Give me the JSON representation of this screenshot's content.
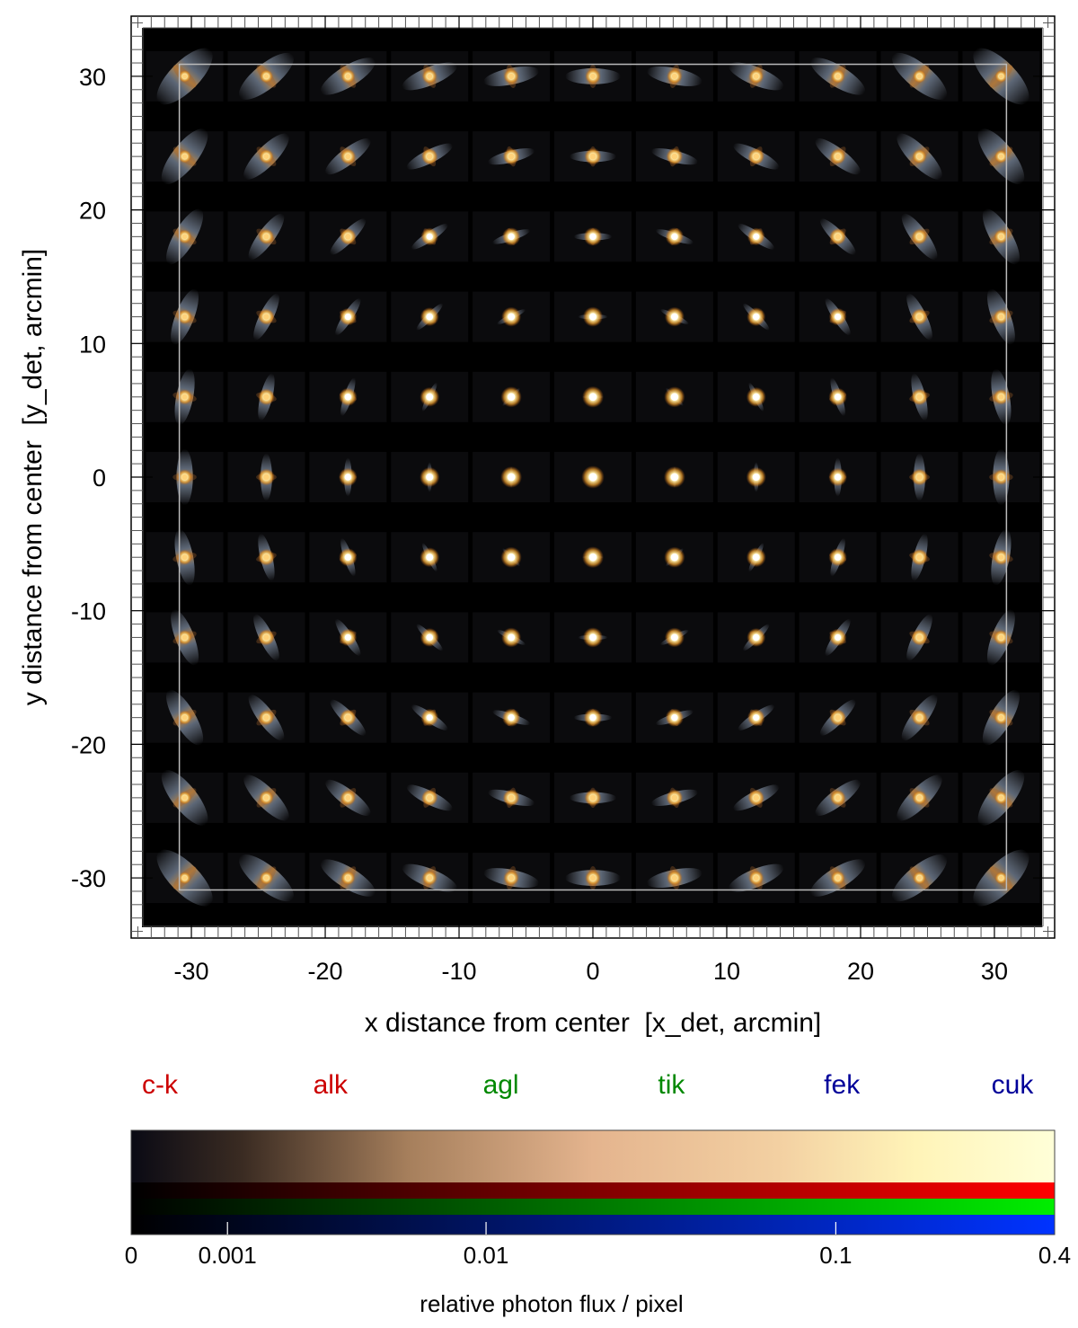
{
  "chart_data": {
    "type": "heatmap",
    "title": "",
    "xlabel": "x distance from center  [x_det, arcmin]",
    "ylabel": "y distance from center  [y_det, arcmin]",
    "xlim": [
      -34.5,
      34.5
    ],
    "ylim": [
      -34.5,
      34.5
    ],
    "xticks": [
      -30,
      -20,
      -10,
      0,
      10,
      20,
      30
    ],
    "yticks": [
      30,
      20,
      10,
      0,
      -10,
      -20,
      -30
    ],
    "psf_grid": {
      "x": [
        -30.5,
        -24.4,
        -18.3,
        -12.2,
        -6.1,
        0,
        6.1,
        12.2,
        18.3,
        24.4,
        30.5
      ],
      "y": [
        30.0,
        24.0,
        18.0,
        12.0,
        6.0,
        0,
        -6.0,
        -12.0,
        -18.0,
        -24.0,
        -30.0
      ]
    },
    "field_box": {
      "x": [
        -30.9,
        30.9
      ],
      "y": [
        -30.9,
        30.9
      ]
    },
    "energy_lines": [
      {
        "name": "c-k",
        "color": "#cc0000"
      },
      {
        "name": "alk",
        "color": "#cc0000"
      },
      {
        "name": "agl",
        "color": "#008800"
      },
      {
        "name": "tik",
        "color": "#008800"
      },
      {
        "name": "fek",
        "color": "#000099"
      },
      {
        "name": "cuk",
        "color": "#000099"
      }
    ],
    "colorbar": {
      "label": "relative photon flux / pixel",
      "scale": "log",
      "range": [
        0,
        0.4
      ],
      "ticks": [
        "0",
        "0.001",
        "0.01",
        "0.1",
        "0.4"
      ],
      "tick_values": [
        0,
        0.001,
        0.01,
        0.1,
        0.4
      ],
      "channels": [
        "#ff0000",
        "#00ee00",
        "#0033ff"
      ]
    }
  }
}
